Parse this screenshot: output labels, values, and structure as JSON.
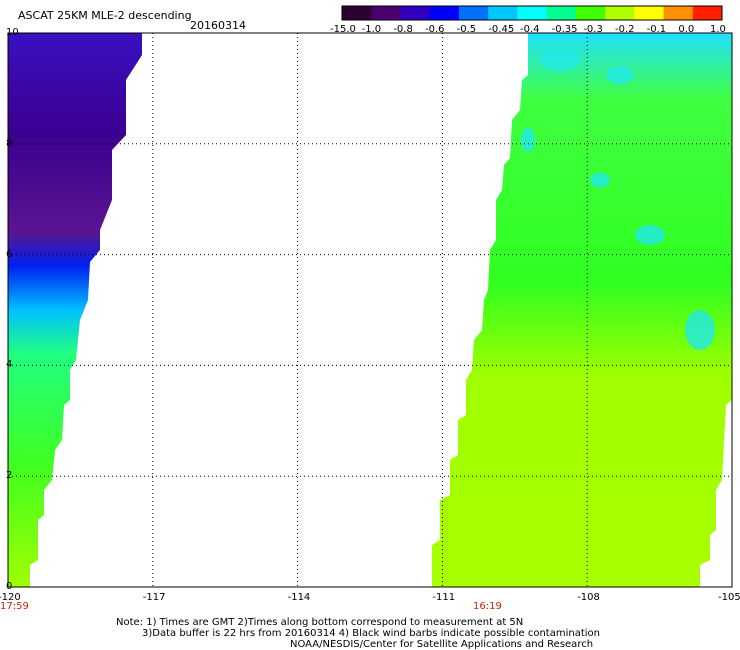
{
  "title": "ASCAT 25KM MLE-2 descending",
  "date": "20160314",
  "colorbar": {
    "labels": [
      "-15.0",
      "-1.0",
      "-0.8",
      "-0.6",
      "-0.5",
      "-0.45",
      "-0.4",
      "-0.35",
      "-0.3",
      "-0.2",
      "-0.1",
      "0.0",
      "1.0"
    ],
    "colors": [
      "#2a0030",
      "#4b0070",
      "#3000c0",
      "#0000ff",
      "#0070ff",
      "#00c8ff",
      "#00ffff",
      "#00ff90",
      "#40ff00",
      "#b0ff00",
      "#ffff00",
      "#ff9000",
      "#ff2000"
    ]
  },
  "map": {
    "lon_min": -120,
    "lon_max": -105,
    "lat_min": 0,
    "lat_max": 10,
    "x_ticks": [
      {
        "value": -120,
        "label": "-120"
      },
      {
        "value": -117,
        "label": "-117"
      },
      {
        "value": -114,
        "label": "-114"
      },
      {
        "value": -111,
        "label": "-111"
      },
      {
        "value": -108,
        "label": "-108"
      },
      {
        "value": -105,
        "label": "-105"
      }
    ],
    "y_ticks": [
      {
        "value": 0,
        "label": "0"
      },
      {
        "value": 2,
        "label": "2"
      },
      {
        "value": 4,
        "label": "4"
      },
      {
        "value": 6,
        "label": "6"
      },
      {
        "value": 8,
        "label": "8"
      },
      {
        "value": 10,
        "label": "10"
      }
    ],
    "times": [
      {
        "lon": -120,
        "label": "17:59"
      },
      {
        "lon": -110.2,
        "label": "16:19"
      }
    ]
  },
  "note": {
    "line1": "Note: 1) Times are GMT 2)Times along bottom correspond to measurement at 5N",
    "line2": "3)Data buffer is 22 hrs from 20160314 4) Black wind barbs indicate possible contamination",
    "line3": "NOAA/NESDIS/Center for Satellite Applications and Research"
  }
}
